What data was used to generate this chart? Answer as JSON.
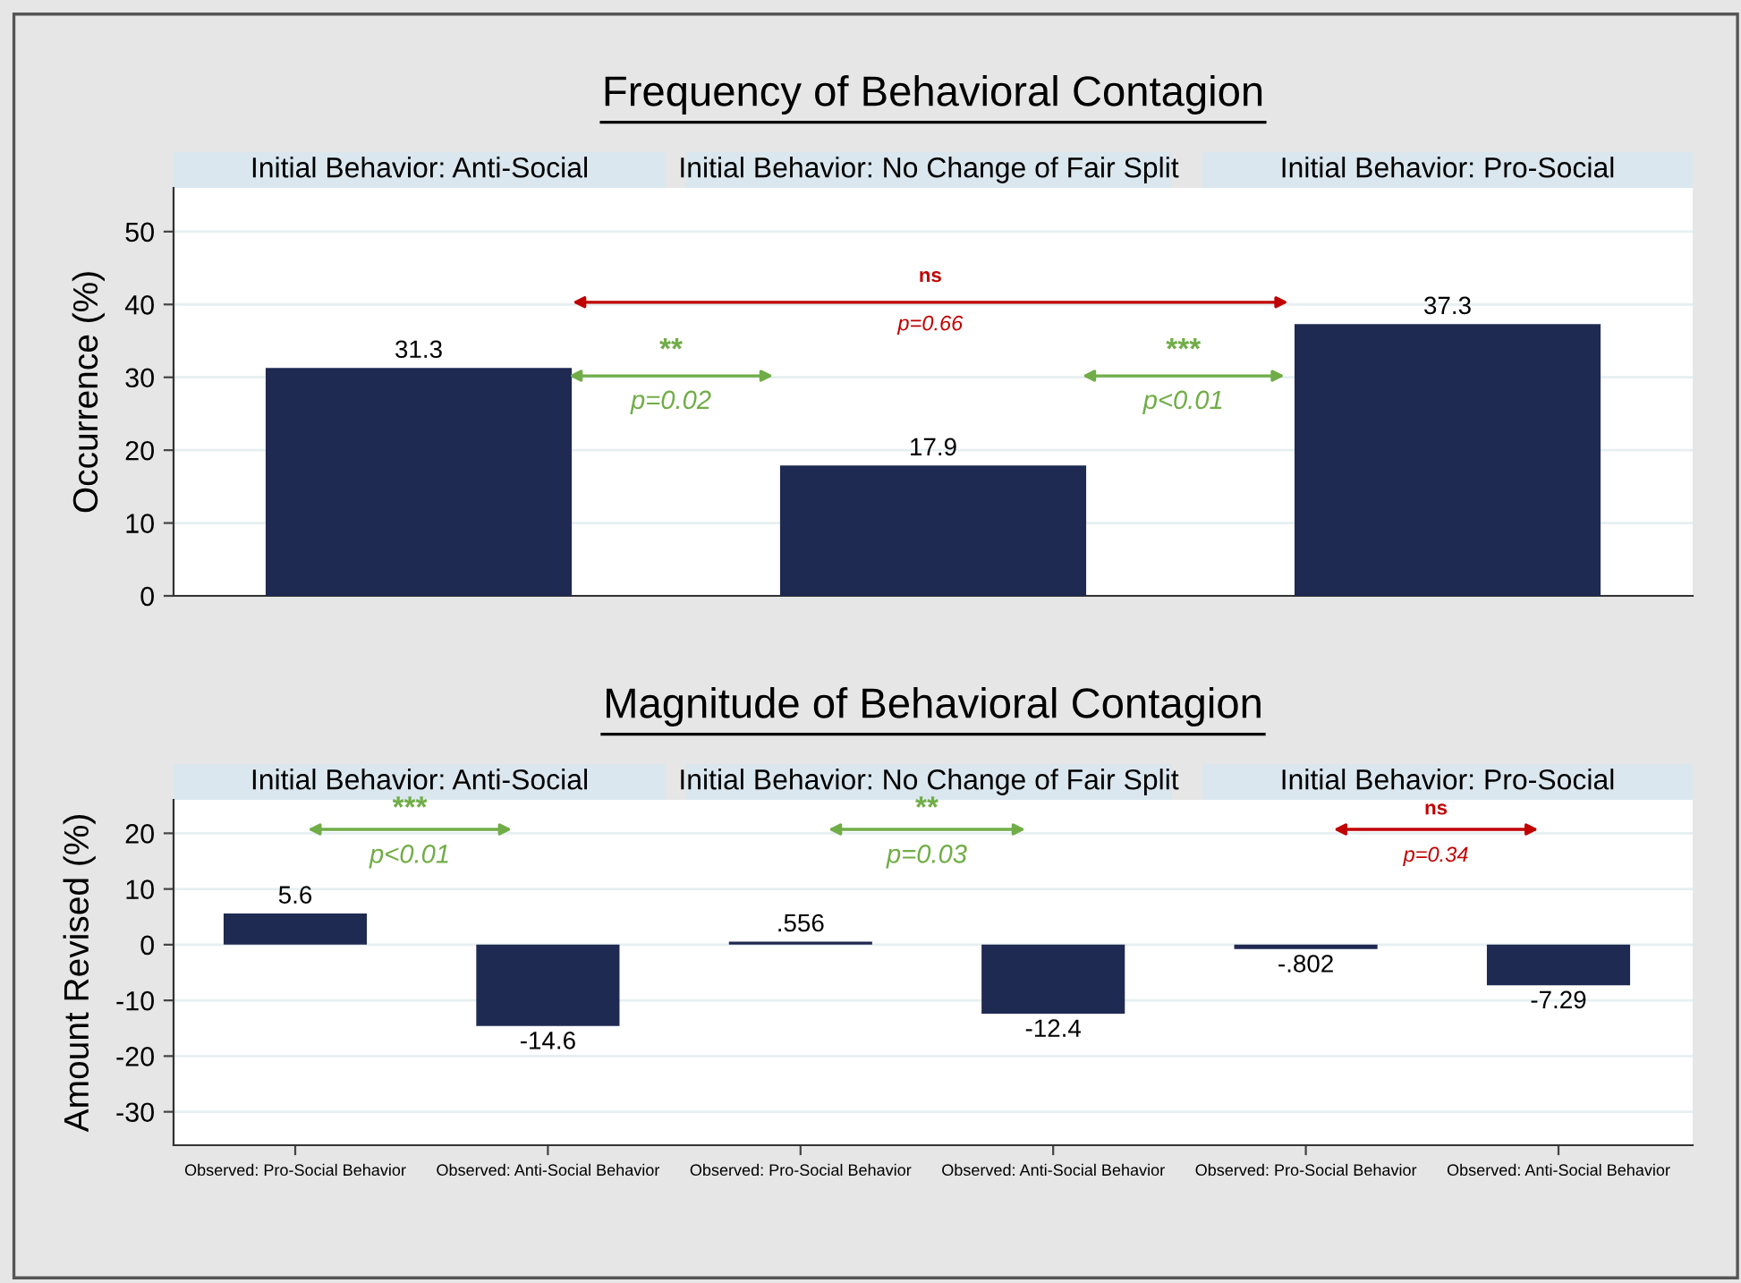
{
  "chart_data": [
    {
      "type": "bar",
      "title": "Frequency of Behavioral Contagion",
      "ylabel": "Occurrence (%)",
      "categories": [
        null,
        null,
        null
      ],
      "values": [
        31.3,
        17.9,
        37.3
      ],
      "color": "#1f2a52",
      "ylim": [
        0,
        56
      ],
      "yticks": [
        0,
        10,
        20,
        30,
        40,
        50
      ],
      "grid": "y",
      "data_labels": true,
      "annotations": [
        "Initial Behavior: Anti-Social",
        "Initial Behavior: No Change of Fair Split",
        "Initial Behavior: Pro-Social",
        "**",
        "p=0.02",
        "ns",
        "p=0.66",
        "***",
        "p<0.01"
      ]
    },
    {
      "type": "bar",
      "title": "Magnitude of Behavioral Contagion",
      "ylabel": "Amount Revised (%)",
      "categories": [
        "Observed: Pro-Social Behavior",
        "Observed: Anti-Social Behavior",
        "Observed: Pro-Social Behavior",
        "Observed: Anti-Social Behavior",
        "Observed: Pro-Social Behavior",
        "Observed: Anti-Social Behavior"
      ],
      "values": [
        5.6,
        -14.6,
        0.556,
        -12.4,
        -0.802,
        -7.29
      ],
      "value_labels": [
        "5.6",
        "-14.6",
        ".556",
        "-12.4",
        "-.802",
        "-7.29"
      ],
      "color": "#1f2a52",
      "ylim": [
        -36,
        26
      ],
      "yticks": [
        -30,
        -20,
        -10,
        0,
        10,
        20
      ],
      "grid": "y",
      "annotations": [
        "Initial Behavior: Anti-Social",
        "Initial Behavior: No Change of Fair Split",
        "Initial Behavior: Pro-Social",
        "***",
        "p<0.01",
        "**",
        "p=0.03",
        "ns",
        "p=0.34"
      ]
    }
  ]
}
